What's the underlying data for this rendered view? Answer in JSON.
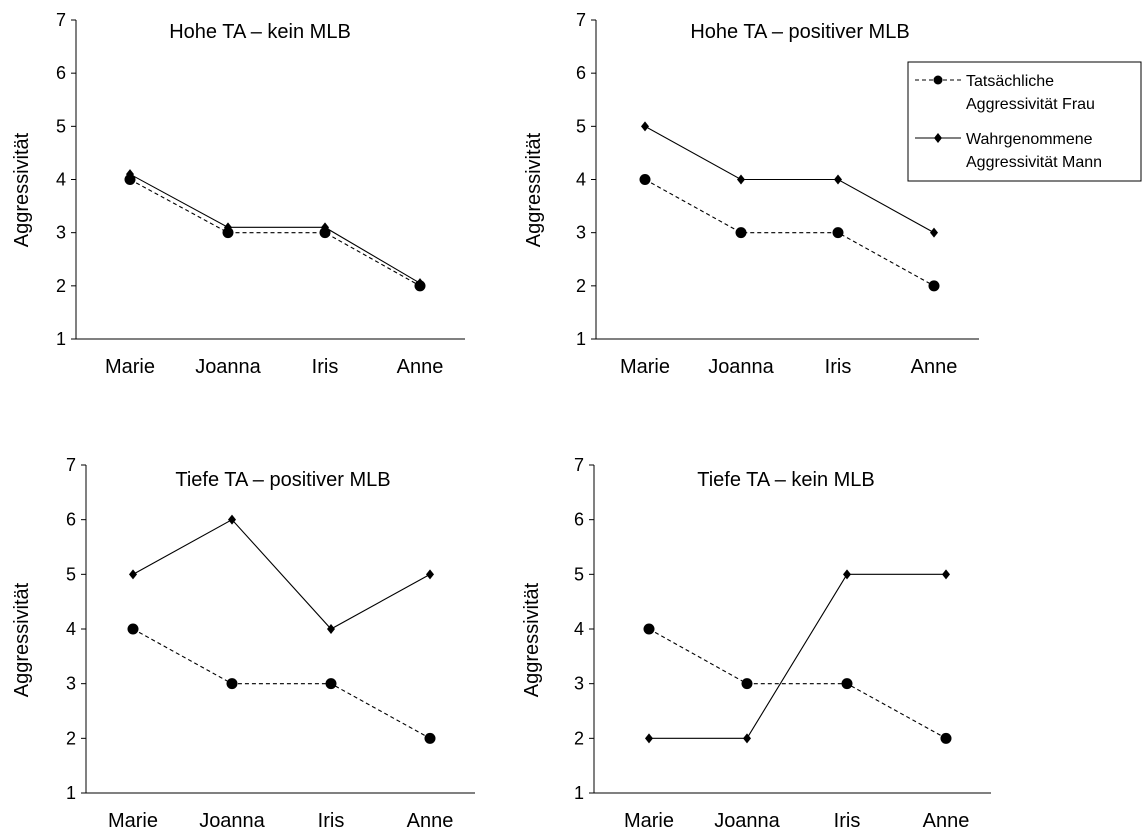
{
  "chart_data": [
    {
      "type": "line",
      "title": "Hohe TA – kein MLB",
      "ylabel": "Aggressivität",
      "categories": [
        "Marie",
        "Joanna",
        "Iris",
        "Anne"
      ],
      "ylim": [
        1,
        7
      ],
      "yticks": [
        1,
        2,
        3,
        4,
        5,
        6,
        7
      ],
      "series": [
        {
          "name": "Tatsächliche Aggressivität Frau",
          "values": [
            4,
            3,
            3,
            2
          ],
          "style": "dashed",
          "marker": "circle"
        },
        {
          "name": "Wahrgenommene Aggressivität Mann",
          "values": [
            4.1,
            3.1,
            3.1,
            2.05
          ],
          "style": "solid",
          "marker": "diamond"
        }
      ]
    },
    {
      "type": "line",
      "title": "Hohe TA – positiver MLB",
      "ylabel": "Aggressivität",
      "categories": [
        "Marie",
        "Joanna",
        "Iris",
        "Anne"
      ],
      "ylim": [
        1,
        7
      ],
      "yticks": [
        1,
        2,
        3,
        4,
        5,
        6,
        7
      ],
      "legend": {
        "position": "top-right",
        "entries": [
          {
            "lines": [
              "Tatsächliche",
              "Aggressivität Frau"
            ],
            "style": "dashed",
            "marker": "circle"
          },
          {
            "lines": [
              "Wahrgenommene",
              "Aggressivität Mann"
            ],
            "style": "solid",
            "marker": "diamond"
          }
        ]
      },
      "series": [
        {
          "name": "Tatsächliche Aggressivität Frau",
          "values": [
            4,
            3,
            3,
            2
          ],
          "style": "dashed",
          "marker": "circle"
        },
        {
          "name": "Wahrgenommene Aggressivität Mann",
          "values": [
            5,
            4,
            4,
            3
          ],
          "style": "solid",
          "marker": "diamond"
        }
      ]
    },
    {
      "type": "line",
      "title": "Tiefe TA – positiver MLB",
      "ylabel": "Aggressivität",
      "categories": [
        "Marie",
        "Joanna",
        "Iris",
        "Anne"
      ],
      "ylim": [
        1,
        7
      ],
      "yticks": [
        1,
        2,
        3,
        4,
        5,
        6,
        7
      ],
      "series": [
        {
          "name": "Tatsächliche Aggressivität Frau",
          "values": [
            4,
            3,
            3,
            2
          ],
          "style": "dashed",
          "marker": "circle"
        },
        {
          "name": "Wahrgenommene Aggressivität Mann",
          "values": [
            5,
            6,
            4,
            5
          ],
          "style": "solid",
          "marker": "diamond"
        }
      ]
    },
    {
      "type": "line",
      "title": "Tiefe TA – kein MLB",
      "ylabel": "Aggressivität",
      "categories": [
        "Marie",
        "Joanna",
        "Iris",
        "Anne"
      ],
      "ylim": [
        1,
        7
      ],
      "yticks": [
        1,
        2,
        3,
        4,
        5,
        6,
        7
      ],
      "series": [
        {
          "name": "Tatsächliche Aggressivität Frau",
          "values": [
            4,
            3,
            3,
            2
          ],
          "style": "dashed",
          "marker": "circle"
        },
        {
          "name": "Wahrgenommene Aggressivität Mann",
          "values": [
            2,
            2,
            5,
            5
          ],
          "style": "solid",
          "marker": "diamond"
        }
      ]
    }
  ]
}
